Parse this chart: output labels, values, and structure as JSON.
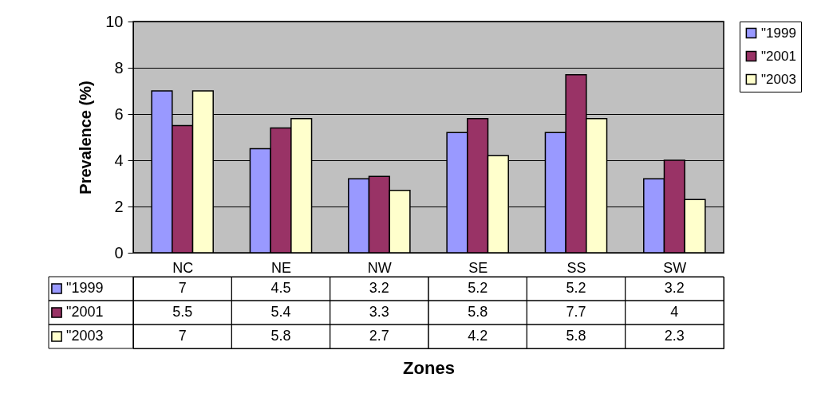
{
  "chart_data": {
    "type": "bar",
    "xlabel": "Zones",
    "ylabel": "Prevalence (%)",
    "categories": [
      "NC",
      "NE",
      "NW",
      "SE",
      "SS",
      "SW"
    ],
    "series": [
      {
        "name": "\"1999",
        "color": "#9999ff",
        "values": [
          7,
          4.5,
          3.2,
          5.2,
          5.2,
          3.2
        ]
      },
      {
        "name": "\"2001",
        "color": "#993366",
        "values": [
          5.5,
          5.4,
          3.3,
          5.8,
          7.7,
          4
        ]
      },
      {
        "name": "\"2003",
        "color": "#ffffcc",
        "values": [
          7,
          5.8,
          2.7,
          4.2,
          5.8,
          2.3
        ]
      }
    ],
    "ylim": [
      0,
      10
    ],
    "yticks": [
      0,
      2,
      4,
      6,
      8,
      10
    ],
    "grid": "y",
    "legend": "right",
    "data_labels": true
  }
}
